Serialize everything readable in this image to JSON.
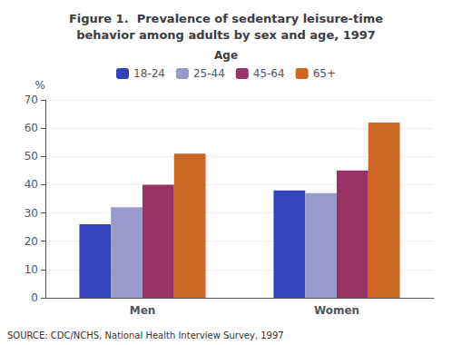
{
  "chart_data": {
    "type": "bar",
    "title": "Figure 1.  Prevalence of sedentary leisure-time\nbehavior among adults by sex and age, 1997",
    "y_label": "%",
    "legend_title": "Age",
    "annotations": [
      "SOURCE: CDC/NCHS, National Health Interview Survey, 1997"
    ],
    "categories": [
      "Men",
      "Women"
    ],
    "series": [
      {
        "name": "18-24",
        "color": "#3344bb",
        "values": [
          26,
          38
        ]
      },
      {
        "name": "25-44",
        "color": "#9999cc",
        "values": [
          32,
          37
        ]
      },
      {
        "name": "45-64",
        "color": "#993366",
        "values": [
          40,
          45
        ]
      },
      {
        "name": "65+",
        "color": "#cc6622",
        "values": [
          51,
          62
        ]
      }
    ],
    "ylim": [
      0,
      70
    ],
    "yticks": [
      0,
      10,
      20,
      30,
      40,
      50,
      60,
      70
    ],
    "grid": true,
    "legend": "top"
  }
}
